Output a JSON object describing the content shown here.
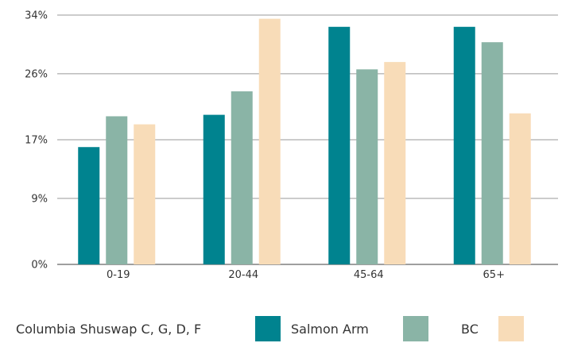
{
  "chart_data": {
    "type": "bar",
    "categories": [
      "0-19",
      "20-44",
      "45-64",
      "65+"
    ],
    "series": [
      {
        "name": "Columbia Shuswap C, G, D, F",
        "color": "#00838f",
        "values": [
          16.0,
          20.4,
          32.4,
          32.4
        ]
      },
      {
        "name": "Salmon Arm",
        "color": "#8ab4a6",
        "values": [
          20.2,
          23.6,
          26.6,
          30.3
        ]
      },
      {
        "name": "BC",
        "color": "#f8dcb8",
        "values": [
          19.1,
          33.5,
          27.6,
          20.6
        ]
      }
    ],
    "y_ticks": [
      0,
      9,
      17,
      26,
      34
    ],
    "y_tick_labels": [
      "0%",
      "9%",
      "17%",
      "26%",
      "34%"
    ],
    "ylim": [
      0,
      34
    ],
    "grid": true,
    "legend_position": "bottom"
  }
}
